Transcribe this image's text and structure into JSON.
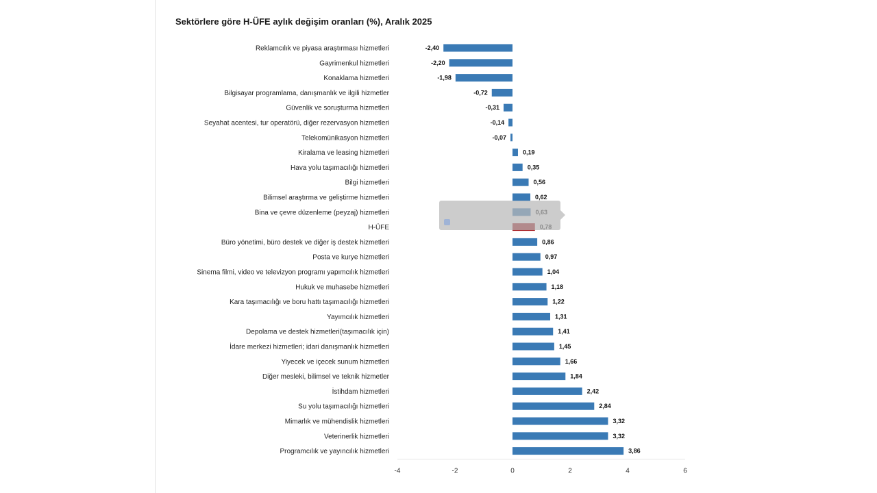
{
  "chart_data": {
    "type": "bar",
    "orientation": "horizontal",
    "title": "Sektörlere göre H-ÜFE aylık değişim oranları (%), Aralık 2025",
    "xlabel": "",
    "ylabel": "",
    "xlim": [
      -4,
      6
    ],
    "xticks": [
      -4,
      -2,
      0,
      2,
      4,
      6
    ],
    "colors": {
      "default": "#3a7ab5",
      "highlight": "#a31419"
    },
    "highlight_category": "H-ÜFE",
    "categories": [
      "Reklamcılık ve piyasa araştırması hizmetleri",
      "Gayrimenkul hizmetleri",
      "Konaklama hizmetleri",
      "Bilgisayar programlama, danışmanlık ve ilgili hizmetler",
      "Güvenlik ve soruşturma hizmetleri",
      "Seyahat acentesi, tur operatörü, diğer rezervasyon hizmetleri",
      "Telekomünikasyon hizmetleri",
      "Kiralama ve leasing hizmetleri",
      "Hava yolu taşımacılığı hizmetleri",
      "Bilgi hizmetleri",
      "Bilimsel araştırma ve geliştirme hizmetleri",
      "Bina ve çevre düzenleme (peyzaj) hizmetleri",
      "H-ÜFE",
      "Büro yönetimi, büro destek ve diğer iş destek hizmetleri",
      "Posta ve kurye hizmetleri",
      "Sinema filmi, video ve televizyon programı yapımcılık hizmetleri",
      "Hukuk ve muhasebe hizmetleri",
      "Kara taşımacılığı ve boru hattı taşımacılığı hizmetleri",
      "Yayımcılık hizmetleri",
      "Depolama ve destek hizmetleri(taşımacılık için)",
      "İdare merkezi hizmetleri; idari danışmanlık hizmetleri",
      "Yiyecek ve içecek sunum hizmetleri",
      "Diğer mesleki, bilimsel ve teknik hizmetler",
      "İstihdam hizmetleri",
      "Su yolu taşımacılığı hizmetleri",
      "Mimarlık ve mühendislik hizmetleri",
      "Veterinerlik hizmetleri",
      "Programcılık ve yayıncılık hizmetleri"
    ],
    "values": [
      -2.4,
      -2.2,
      -1.98,
      -0.72,
      -0.31,
      -0.14,
      -0.07,
      0.19,
      0.35,
      0.56,
      0.62,
      0.63,
      0.78,
      0.86,
      0.97,
      1.04,
      1.18,
      1.22,
      1.31,
      1.41,
      1.45,
      1.66,
      1.84,
      2.42,
      2.84,
      3.32,
      3.32,
      3.86
    ],
    "value_labels": [
      "-2,40",
      "-2,20",
      "-1,98",
      "-0,72",
      "-0,31",
      "-0,14",
      "-0,07",
      "0,19",
      "0,35",
      "0,56",
      "0,62",
      "0,63",
      "0,78",
      "0,86",
      "0,97",
      "1,04",
      "1,18",
      "1,22",
      "1,31",
      "1,41",
      "1,45",
      "1,66",
      "1,84",
      "2,42",
      "2,84",
      "3,32",
      "3,32",
      "3,86"
    ],
    "tick_labels": [
      "-4",
      "-2",
      "0",
      "2",
      "4",
      "6"
    ]
  }
}
